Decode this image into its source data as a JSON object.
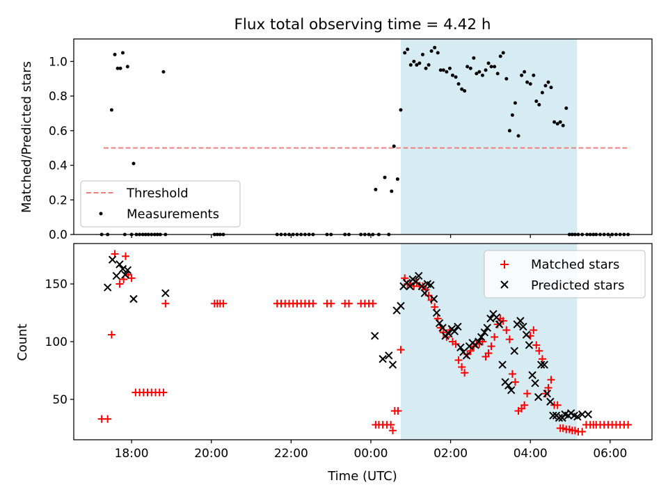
{
  "title": "Flux total observing time = 4.42 h",
  "chart_data": [
    {
      "type": "scatter",
      "ylabel": "Matched/Predicted stars",
      "xlim": [
        16.55,
        31.05
      ],
      "ylim": [
        0,
        1.13
      ],
      "yticks": [
        0.0,
        0.2,
        0.4,
        0.6,
        0.8,
        1.0
      ],
      "ytick_labels": [
        "0.0",
        "0.2",
        "0.4",
        "0.6",
        "0.8",
        "1.0"
      ],
      "shaded_span": [
        24.75,
        29.17
      ],
      "threshold": {
        "name": "Threshold",
        "y": 0.5,
        "x": [
          17.3,
          30.5
        ],
        "color": "#f08080",
        "style": "dashed"
      },
      "legend": {
        "location": "lower left",
        "entries": [
          "Threshold",
          "Measurements"
        ]
      },
      "series": [
        {
          "name": "Measurements",
          "color": "#000000",
          "marker": "dot",
          "x": [
            17.25,
            17.4,
            17.5,
            17.58,
            17.65,
            17.72,
            17.78,
            17.83,
            17.9,
            18.0,
            18.05,
            18.12,
            18.2,
            18.28,
            18.35,
            18.42,
            18.5,
            18.58,
            18.65,
            18.72,
            18.8,
            18.85,
            20.08,
            20.15,
            20.22,
            20.3,
            21.65,
            21.75,
            21.85,
            21.95,
            22.05,
            22.15,
            22.25,
            22.35,
            22.45,
            22.55,
            22.9,
            23.0,
            23.35,
            23.45,
            23.75,
            23.85,
            23.95,
            24.05,
            24.12,
            24.2,
            24.35,
            24.45,
            24.52,
            24.58,
            24.67,
            24.75,
            24.85,
            24.92,
            25.0,
            25.08,
            25.15,
            25.22,
            25.3,
            25.38,
            25.45,
            25.52,
            25.6,
            25.68,
            25.75,
            25.82,
            25.9,
            25.98,
            26.05,
            26.13,
            26.2,
            26.28,
            26.35,
            26.42,
            26.5,
            26.58,
            26.65,
            26.72,
            26.8,
            26.88,
            26.95,
            27.02,
            27.1,
            27.18,
            27.25,
            27.32,
            27.4,
            27.48,
            27.55,
            27.62,
            27.7,
            27.78,
            27.85,
            27.92,
            28.0,
            28.08,
            28.15,
            28.22,
            28.3,
            28.38,
            28.45,
            28.52,
            28.6,
            28.68,
            28.75,
            28.82,
            28.9,
            28.98,
            29.05,
            29.12,
            29.2,
            29.3,
            29.42,
            29.5,
            29.58,
            29.65,
            29.75,
            29.85,
            29.95,
            30.05,
            30.15,
            30.25,
            30.35,
            30.45
          ],
          "y": [
            0.0,
            0.0,
            0.72,
            1.04,
            0.96,
            0.96,
            1.05,
            0.0,
            0.97,
            0.0,
            0.41,
            0.0,
            0.0,
            0.0,
            0.0,
            0.0,
            0.0,
            0.0,
            0.0,
            0.0,
            0.94,
            0.0,
            0.0,
            0.0,
            0.0,
            0.0,
            0.0,
            0.0,
            0.0,
            0.0,
            0.0,
            0.0,
            0.0,
            0.0,
            0.0,
            0.0,
            0.0,
            0.0,
            0.0,
            0.0,
            0.0,
            0.0,
            0.0,
            0.0,
            0.26,
            0.0,
            0.33,
            0.0,
            0.25,
            0.51,
            0.32,
            0.72,
            1.05,
            1.07,
            0.98,
            1.0,
            0.98,
            0.99,
            1.04,
            0.96,
            0.98,
            1.06,
            1.08,
            1.05,
            0.95,
            0.95,
            0.94,
            0.96,
            0.92,
            0.91,
            0.87,
            0.84,
            0.83,
            0.97,
            0.96,
            1.02,
            0.93,
            0.94,
            0.92,
            0.95,
            0.99,
            0.97,
            0.97,
            0.93,
            1.03,
            1.05,
            0.9,
            0.6,
            0.69,
            0.76,
            0.57,
            0.92,
            0.94,
            0.88,
            0.87,
            0.92,
            0.77,
            0.75,
            0.82,
            0.86,
            0.88,
            0.85,
            0.65,
            0.64,
            0.65,
            0.63,
            0.73,
            0.0,
            0.0,
            0.0,
            0.0,
            0.0,
            0.0,
            0.0,
            0.0,
            0.0,
            0.0,
            0.0,
            0.0,
            0.0,
            0.0,
            0.0,
            0.0,
            0.0
          ]
        }
      ]
    },
    {
      "type": "scatter",
      "xlabel": "Time (UTC)",
      "ylabel": "Count",
      "xlim": [
        16.55,
        31.05
      ],
      "ylim": [
        15,
        185
      ],
      "xticks": [
        18,
        20,
        22,
        24,
        26,
        28,
        30
      ],
      "xtick_labels": [
        "18:00",
        "20:00",
        "22:00",
        "00:00",
        "02:00",
        "04:00",
        "06:00"
      ],
      "yticks": [
        50,
        100,
        150
      ],
      "ytick_labels": [
        "50",
        "100",
        "150"
      ],
      "shaded_span": [
        24.75,
        29.17
      ],
      "legend": {
        "location": "upper right",
        "entries": [
          "Matched stars",
          "Predicted stars"
        ]
      },
      "series": [
        {
          "name": "Matched stars",
          "color": "#ff0000",
          "marker": "plus",
          "x": [
            17.25,
            17.4,
            17.5,
            17.58,
            17.7,
            17.8,
            17.85,
            17.92,
            18.0,
            18.1,
            18.2,
            18.3,
            18.4,
            18.5,
            18.6,
            18.7,
            18.8,
            18.85,
            20.08,
            20.15,
            20.22,
            20.3,
            21.65,
            21.75,
            21.85,
            21.95,
            22.05,
            22.15,
            22.25,
            22.35,
            22.45,
            22.55,
            22.9,
            23.0,
            23.35,
            23.45,
            23.75,
            23.85,
            23.95,
            24.05,
            24.12,
            24.2,
            24.3,
            24.4,
            24.5,
            24.55,
            24.6,
            24.68,
            24.75,
            24.85,
            24.92,
            25.0,
            25.08,
            25.15,
            25.22,
            25.3,
            25.38,
            25.45,
            25.52,
            25.6,
            25.68,
            25.75,
            25.82,
            25.9,
            25.98,
            26.05,
            26.13,
            26.2,
            26.28,
            26.35,
            26.42,
            26.5,
            26.58,
            26.65,
            26.72,
            26.8,
            26.88,
            26.95,
            27.02,
            27.1,
            27.18,
            27.25,
            27.32,
            27.4,
            27.48,
            27.55,
            27.62,
            27.7,
            27.78,
            27.85,
            27.92,
            28.0,
            28.08,
            28.15,
            28.22,
            28.3,
            28.38,
            28.45,
            28.52,
            28.6,
            28.68,
            28.75,
            28.82,
            28.9,
            28.98,
            29.05,
            29.12,
            29.2,
            29.3,
            29.4,
            29.5,
            29.58,
            29.65,
            29.75,
            29.85,
            29.95,
            30.05,
            30.15,
            30.25,
            30.35,
            30.45
          ],
          "y": [
            33,
            33,
            106,
            176,
            150,
            154,
            174,
            158,
            155,
            56,
            56,
            56,
            56,
            56,
            56,
            56,
            56,
            133,
            133,
            133,
            133,
            133,
            133,
            133,
            133,
            133,
            133,
            133,
            133,
            133,
            133,
            133,
            133,
            133,
            133,
            133,
            133,
            133,
            133,
            133,
            28,
            28,
            28,
            28,
            28,
            23,
            40,
            40,
            93,
            155,
            150,
            150,
            148,
            151,
            148,
            148,
            145,
            140,
            136,
            130,
            120,
            112,
            108,
            104,
            110,
            100,
            98,
            84,
            78,
            73,
            89,
            92,
            96,
            98,
            98,
            100,
            87,
            90,
            96,
            104,
            115,
            120,
            118,
            110,
            102,
            72,
            65,
            40,
            42,
            45,
            55,
            105,
            110,
            97,
            92,
            85,
            55,
            60,
            67,
            45,
            45,
            25,
            25,
            24,
            24,
            23,
            23,
            22,
            22,
            28,
            28,
            28,
            28,
            28,
            28,
            28,
            28,
            28,
            28,
            28,
            28
          ]
        },
        {
          "name": "Predicted stars",
          "color": "#000000",
          "marker": "x",
          "x": [
            17.4,
            17.52,
            17.62,
            17.7,
            17.78,
            17.84,
            17.9,
            18.05,
            18.85,
            24.1,
            24.3,
            24.45,
            24.55,
            24.65,
            24.75,
            24.82,
            24.9,
            24.98,
            25.05,
            25.13,
            25.2,
            25.28,
            25.35,
            25.42,
            25.5,
            25.58,
            25.65,
            25.72,
            25.8,
            25.87,
            25.95,
            26.03,
            26.1,
            26.18,
            26.25,
            26.32,
            26.4,
            26.47,
            26.55,
            26.62,
            26.7,
            26.77,
            26.85,
            26.92,
            27.0,
            27.07,
            27.15,
            27.22,
            27.3,
            27.37,
            27.45,
            27.52,
            27.6,
            27.67,
            27.75,
            27.82,
            27.9,
            27.97,
            28.05,
            28.12,
            28.2,
            28.27,
            28.35,
            28.42,
            28.5,
            28.57,
            28.65,
            28.72,
            28.8,
            28.87,
            28.95,
            29.02,
            29.1,
            29.18,
            29.3,
            29.45
          ],
          "y": [
            147,
            171,
            157,
            167,
            163,
            158,
            162,
            137,
            142,
            105,
            85,
            88,
            80,
            127,
            131,
            148,
            151,
            148,
            154,
            152,
            157,
            148,
            142,
            150,
            149,
            137,
            125,
            116,
            112,
            105,
            107,
            111,
            109,
            113,
            95,
            91,
            88,
            96,
            99,
            97,
            100,
            104,
            108,
            112,
            120,
            124,
            121,
            115,
            80,
            65,
            62,
            58,
            92,
            115,
            118,
            113,
            106,
            97,
            71,
            64,
            52,
            80,
            80,
            55,
            48,
            36,
            36,
            34,
            34,
            37,
            36,
            38,
            36,
            35,
            37,
            37
          ]
        }
      ]
    }
  ]
}
